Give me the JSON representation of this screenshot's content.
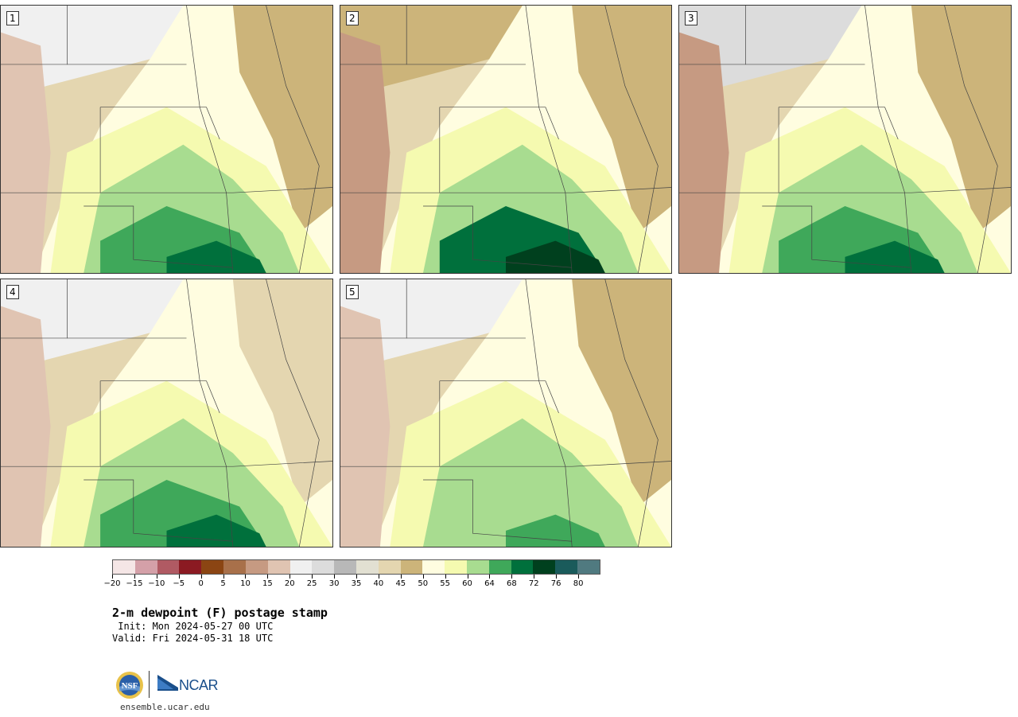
{
  "panels": [
    {
      "label": "1"
    },
    {
      "label": "2"
    },
    {
      "label": "3"
    },
    {
      "label": "4"
    },
    {
      "label": "5"
    }
  ],
  "colorbar": {
    "colors": [
      "#f5e6e6",
      "#d4a0a8",
      "#b05a63",
      "#8b1a22",
      "#8b4513",
      "#a8704a",
      "#c69a82",
      "#e0c4b2",
      "#f0f0f0",
      "#dcdcdc",
      "#b8b8b8",
      "#e2e0d2",
      "#e4d6b0",
      "#ccb47a",
      "#fffde0",
      "#f5fab0",
      "#a8dc90",
      "#3fa85a",
      "#00703c",
      "#00401e",
      "#1a5b5b",
      "#507a80"
    ],
    "ticks": [
      "−20",
      "−15",
      "−10",
      "−5",
      "0",
      "5",
      "10",
      "15",
      "20",
      "25",
      "30",
      "35",
      "40",
      "45",
      "50",
      "55",
      "60",
      "64",
      "68",
      "72",
      "76",
      "80"
    ]
  },
  "title": "2-m dewpoint (F) postage stamp",
  "init": " Init: Mon 2024-05-27 00 UTC",
  "valid": "Valid: Fri 2024-05-31 18 UTC",
  "logos": {
    "nsf": "NSF",
    "ncar": "NCAR"
  },
  "url": "ensemble.ucar.edu"
}
